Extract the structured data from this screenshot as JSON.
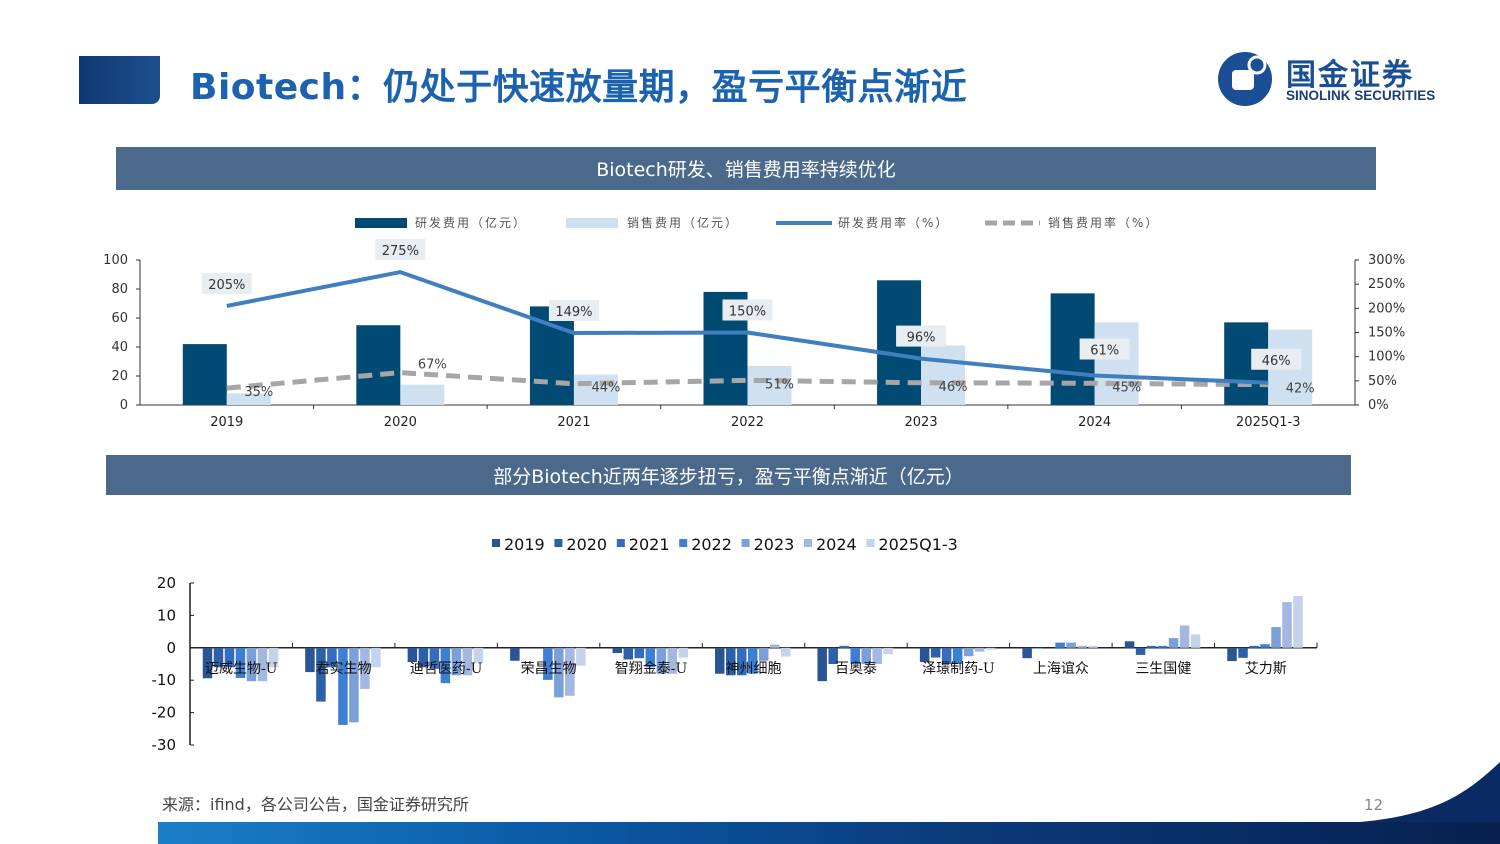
{
  "header": {
    "title": "Biotech：仍处于快速放量期，盈亏平衡点渐近",
    "logo_cn": "国金证券",
    "logo_en": "SINOLINK SECURITIES"
  },
  "footer": {
    "source": "来源：ifind，各公司公告，国金证券研究所",
    "page_number": "12"
  },
  "chart_data": [
    {
      "type": "bar",
      "title": "Biotech研发、销售费用率持续优化",
      "categories": [
        "2019",
        "2020",
        "2021",
        "2022",
        "2023",
        "2024",
        "2025Q1-3"
      ],
      "left_axis": {
        "ylim": [
          0,
          100
        ],
        "ticks": [
          "0",
          "20",
          "40",
          "60",
          "80",
          "100"
        ]
      },
      "right_axis": {
        "ylim": [
          0,
          300
        ],
        "ticks": [
          "0%",
          "50%",
          "100%",
          "150%",
          "200%",
          "250%",
          "300%"
        ]
      },
      "legend_position": "top",
      "grid": false,
      "series": [
        {
          "name": "研发费用（亿元）",
          "type": "bar",
          "axis": "left",
          "color": "#004a73",
          "values": [
            42,
            55,
            68,
            78,
            86,
            77,
            57
          ]
        },
        {
          "name": "销售费用（亿元）",
          "type": "bar",
          "axis": "left",
          "color": "#cfe0f1",
          "values": [
            8,
            14,
            21,
            27,
            41,
            57,
            52
          ]
        },
        {
          "name": "研发费用率（%）",
          "type": "line",
          "axis": "right",
          "color": "#3f7fbf",
          "values": [
            205,
            275,
            149,
            150,
            96,
            61,
            46
          ],
          "labels": [
            "205%",
            "275%",
            "149%",
            "150%",
            "96%",
            "61%",
            "46%"
          ]
        },
        {
          "name": "销售费用率（%）",
          "type": "line-dashed",
          "axis": "right",
          "color": "#a6a6a6",
          "values": [
            35,
            67,
            44,
            51,
            46,
            45,
            42
          ],
          "labels": [
            "35%",
            "67%",
            "44%",
            "51%",
            "46%",
            "45%",
            "42%"
          ]
        }
      ]
    },
    {
      "type": "bar",
      "title": "部分Biotech近两年逐步扭亏，盈亏平衡点渐近（亿元）",
      "categories": [
        "迈威生物-U",
        "君实生物",
        "迪哲医药-U",
        "荣昌生物",
        "智翔金泰-U",
        "神州细胞",
        "百奥泰",
        "泽璟制药-U",
        "上海谊众",
        "三生国健",
        "艾力斯"
      ],
      "ylim": [
        -30,
        20
      ],
      "yticks": [
        "20",
        "10",
        "0",
        "-10",
        "-20",
        "-30"
      ],
      "legend_position": "top",
      "grid": false,
      "series": [
        {
          "name": "2019",
          "color": "#2a5595",
          "values": [
            -9.4,
            -7.5,
            -4.4,
            -4,
            -1.6,
            -8,
            -10.3,
            -4.4,
            -3.2,
            2,
            -4.1
          ]
        },
        {
          "name": "2020",
          "color": "#2e60a8",
          "values": [
            -6,
            -16.6,
            -6,
            0,
            -3.6,
            -8.5,
            -5,
            -3,
            -0.2,
            -2.2,
            -3.1
          ]
        },
        {
          "name": "2021",
          "color": "#346dbf",
          "values": [
            -6,
            -6,
            -6.5,
            0,
            -3.2,
            -8.5,
            0.6,
            -5,
            0,
            0.6,
            0.6
          ]
        },
        {
          "name": "2022",
          "color": "#3e7fd6",
          "values": [
            -9.3,
            -23.8,
            -10.9,
            -9.9,
            -6,
            -8,
            -5,
            -5,
            1.6,
            0.6,
            1.1
          ]
        },
        {
          "name": "2023",
          "color": "#7b9fd8",
          "values": [
            -10.3,
            -23,
            -8.5,
            -15.3,
            -8,
            -4,
            -5,
            -2.6,
            1.6,
            3,
            6.4
          ]
        },
        {
          "name": "2024",
          "color": "#a3b7e0",
          "values": [
            -10.3,
            -12.7,
            -8.5,
            -14.8,
            -8,
            1,
            -5,
            -1.2,
            0.6,
            6.9,
            14.1
          ]
        },
        {
          "name": "2025Q1-3",
          "color": "#c5d2ec",
          "values": [
            -6,
            -6,
            -4.5,
            -5.5,
            -3,
            -2.7,
            -2,
            -0.6,
            0.6,
            4.1,
            16
          ]
        }
      ]
    }
  ]
}
